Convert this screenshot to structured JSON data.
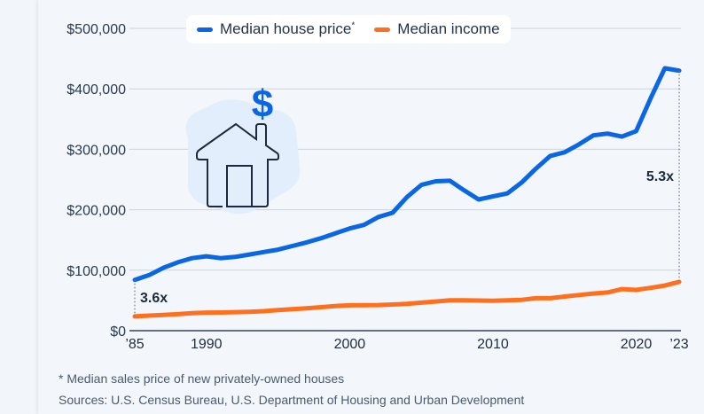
{
  "legend": {
    "house_label": "Median house price",
    "house_marker": "*",
    "income_label": "Median income"
  },
  "colors": {
    "house": "#0b66e4",
    "income": "#ff6f1e",
    "grid": "#cdd3dc",
    "axis": "#34445a",
    "icon_bg": "#e3eefc",
    "icon_stroke": "#1b2a3c",
    "dollar": "#0b66e4"
  },
  "icon": {
    "name": "house-with-dollar-icon",
    "glyph": "$"
  },
  "annotations": {
    "start_ratio": "3.6x",
    "end_ratio": "5.3x"
  },
  "footnote": "* Median sales price of new privately-owned houses",
  "sources": "Sources: U.S. Census Bureau, U.S. Department of Housing and Urban Development",
  "chart_data": {
    "type": "line",
    "title": "",
    "xlabel": "",
    "ylabel": "",
    "ylim": [
      0,
      500000
    ],
    "xlim": [
      1985,
      2023
    ],
    "y_ticks": [
      0,
      100000,
      200000,
      300000,
      400000,
      500000
    ],
    "y_tick_labels": [
      "$0",
      "$100,000",
      "$200,000",
      "$300,000",
      "$400,000",
      "$500,000"
    ],
    "x_ticks": [
      1985,
      1990,
      2000,
      2010,
      2020,
      2023
    ],
    "x_tick_labels": [
      "’85",
      "1990",
      "2000",
      "2010",
      "2020",
      "’23"
    ],
    "grid": true,
    "legend_position": "top",
    "x": [
      1985,
      1986,
      1987,
      1988,
      1989,
      1990,
      1991,
      1992,
      1993,
      1994,
      1995,
      1996,
      1997,
      1998,
      1999,
      2000,
      2001,
      2002,
      2003,
      2004,
      2005,
      2006,
      2007,
      2008,
      2009,
      2010,
      2011,
      2012,
      2013,
      2014,
      2015,
      2016,
      2017,
      2018,
      2019,
      2020,
      2021,
      2022,
      2023
    ],
    "series": [
      {
        "name": "Median house price*",
        "color": "#0b66e4",
        "values": [
          84000,
          92000,
          104000,
          113000,
          120000,
          123000,
          120000,
          122000,
          126000,
          130000,
          134000,
          140000,
          146000,
          153000,
          161000,
          169000,
          175000,
          188000,
          195000,
          221000,
          241000,
          247000,
          248000,
          232000,
          217000,
          222000,
          227000,
          245000,
          268000,
          289000,
          295000,
          308000,
          323000,
          326000,
          321000,
          330000,
          384000,
          434000,
          430000
        ]
      },
      {
        "name": "Median income",
        "color": "#ff6f1e",
        "values": [
          23600,
          24900,
          26100,
          27200,
          28900,
          29900,
          30100,
          30600,
          31200,
          32300,
          34100,
          35500,
          37000,
          38900,
          40700,
          41990,
          42200,
          42400,
          43300,
          44300,
          46300,
          48200,
          50200,
          50300,
          49800,
          49400,
          50100,
          51000,
          53600,
          53700,
          56500,
          59000,
          61400,
          63200,
          68700,
          67500,
          70800,
          74600,
          80600
        ]
      }
    ],
    "annotations": [
      {
        "text": "3.6x",
        "x": 1985,
        "note": "house price / income ratio at start"
      },
      {
        "text": "5.3x",
        "x": 2023,
        "note": "house price / income ratio at end"
      }
    ]
  }
}
